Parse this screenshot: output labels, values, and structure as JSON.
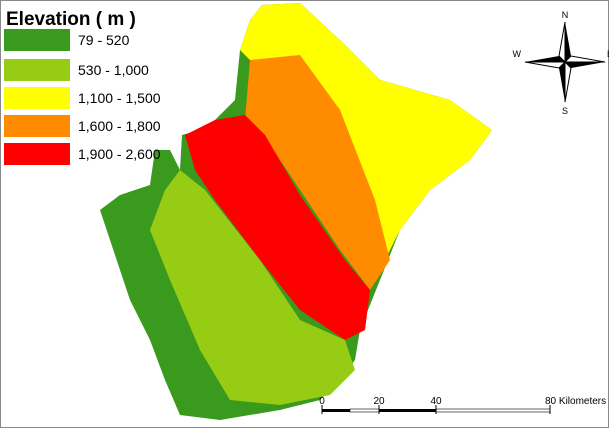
{
  "title": "Elevation ( m )",
  "legend": [
    {
      "label": "79 - 520",
      "color": "#3a9a1e"
    },
    {
      "label": "530 - 1,000",
      "color": "#96cc14"
    },
    {
      "label": "1,100 - 1,500",
      "color": "#ffff00"
    },
    {
      "label": "1,600 - 1,800",
      "color": "#ff8c00"
    },
    {
      "label": "1,900 - 2,600",
      "color": "#ff0000"
    }
  ],
  "compass": {
    "north": "N",
    "south": "S",
    "east": "E",
    "west": "W"
  },
  "scale_bar": {
    "labels": [
      "0",
      "20",
      "40",
      "80 Kilometers"
    ]
  }
}
